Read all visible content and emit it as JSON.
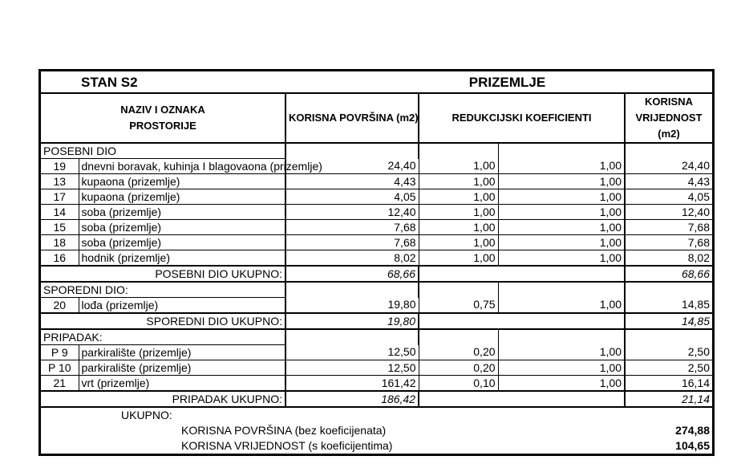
{
  "title": "STAN S2",
  "floor": "PRIZEMLJE",
  "headers": {
    "name": "NAZIV I OZNAKA PROSTORIJE",
    "area": "KORISNA POVRŠINA (m2)",
    "coef": "REDUKCIJSKI KOEFICIENTI",
    "value": "KORISNA VRIJEDNOST (m2)"
  },
  "sections": [
    {
      "label": "POSEBNI DIO",
      "rows": [
        {
          "id": "19",
          "name": "dnevni boravak, kuhinja I blagovaona (prizemlje)",
          "area": "24,40",
          "k1": "1,00",
          "k2": "1,00",
          "value": "24,40"
        },
        {
          "id": "13",
          "name": "kupaona (prizemlje)",
          "area": "4,43",
          "k1": "1,00",
          "k2": "1,00",
          "value": "4,43"
        },
        {
          "id": "17",
          "name": "kupaona (prizemlje)",
          "area": "4,05",
          "k1": "1,00",
          "k2": "1,00",
          "value": "4,05"
        },
        {
          "id": "14",
          "name": "soba (prizemlje)",
          "area": "12,40",
          "k1": "1,00",
          "k2": "1,00",
          "value": "12,40"
        },
        {
          "id": "15",
          "name": "soba (prizemlje)",
          "area": "7,68",
          "k1": "1,00",
          "k2": "1,00",
          "value": "7,68"
        },
        {
          "id": "18",
          "name": "soba (prizemlje)",
          "area": "7,68",
          "k1": "1,00",
          "k2": "1,00",
          "value": "7,68"
        },
        {
          "id": "16",
          "name": "hodnik (prizemlje)",
          "area": "8,02",
          "k1": "1,00",
          "k2": "1,00",
          "value": "8,02"
        }
      ],
      "subtotal_label": "POSEBNI DIO UKUPNO:",
      "subtotal_area": "68,66",
      "subtotal_value": "68,66"
    },
    {
      "label": "SPOREDNI DIO:",
      "rows": [
        {
          "id": "20",
          "name": "lođa (prizemlje)",
          "area": "19,80",
          "k1": "0,75",
          "k2": "1,00",
          "value": "14,85"
        }
      ],
      "subtotal_label": "SPOREDNI DIO UKUPNO:",
      "subtotal_area": "19,80",
      "subtotal_value": "14,85"
    },
    {
      "label": "PRIPADAK:",
      "rows": [
        {
          "id": "P 9",
          "name": "parkiralište (prizemlje)",
          "area": "12,50",
          "k1": "0,20",
          "k2": "1,00",
          "value": "2,50"
        },
        {
          "id": "P 10",
          "name": "parkiralište (prizemlje)",
          "area": "12,50",
          "k1": "0,20",
          "k2": "1,00",
          "value": "2,50"
        },
        {
          "id": "21",
          "name": "vrt (prizemlje)",
          "area": "161,42",
          "k1": "0,10",
          "k2": "1,00",
          "value": "16,14"
        }
      ],
      "subtotal_label": "PRIPADAK UKUPNO:",
      "subtotal_area": "186,42",
      "subtotal_value": "21,14"
    }
  ],
  "total": {
    "label": "UKUPNO:",
    "area_label": "KORISNA POVRŠINA (bez koeficijenata)",
    "area": "274,88",
    "value_label": "KORISNA VRIJEDNOST (s koeficijentima)",
    "value": "104,65"
  }
}
